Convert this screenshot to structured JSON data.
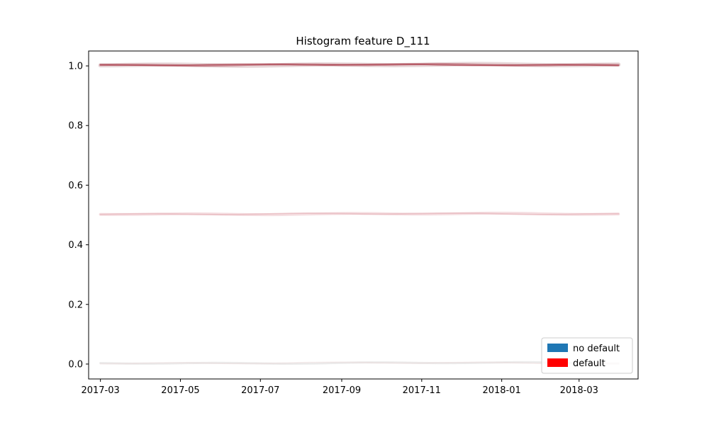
{
  "chart_data": {
    "type": "line",
    "title": "Histogram feature D_111",
    "xlabel": "",
    "ylabel": "",
    "x_ticks": [
      "2017-03",
      "2017-05",
      "2017-07",
      "2017-09",
      "2017-11",
      "2018-01",
      "2018-03"
    ],
    "y_ticks": [
      "0.0",
      "0.2",
      "0.4",
      "0.6",
      "0.8",
      "1.0"
    ],
    "ylim": [
      -0.05,
      1.05
    ],
    "xlim": [
      "2017-02-20",
      "2018-04-15"
    ],
    "x_range": [
      "2017-03-01",
      "2018-03-31"
    ],
    "bands": [
      {
        "y": 0.0,
        "level": "faint"
      },
      {
        "y": 0.5,
        "level": "light"
      },
      {
        "y": 1.0,
        "level": "strong"
      }
    ],
    "grid": false,
    "legend_position": "lower-right",
    "legend": [
      {
        "label": "no default",
        "color": "#1f77b4"
      },
      {
        "label": "default",
        "color": "#ff0000"
      }
    ]
  }
}
